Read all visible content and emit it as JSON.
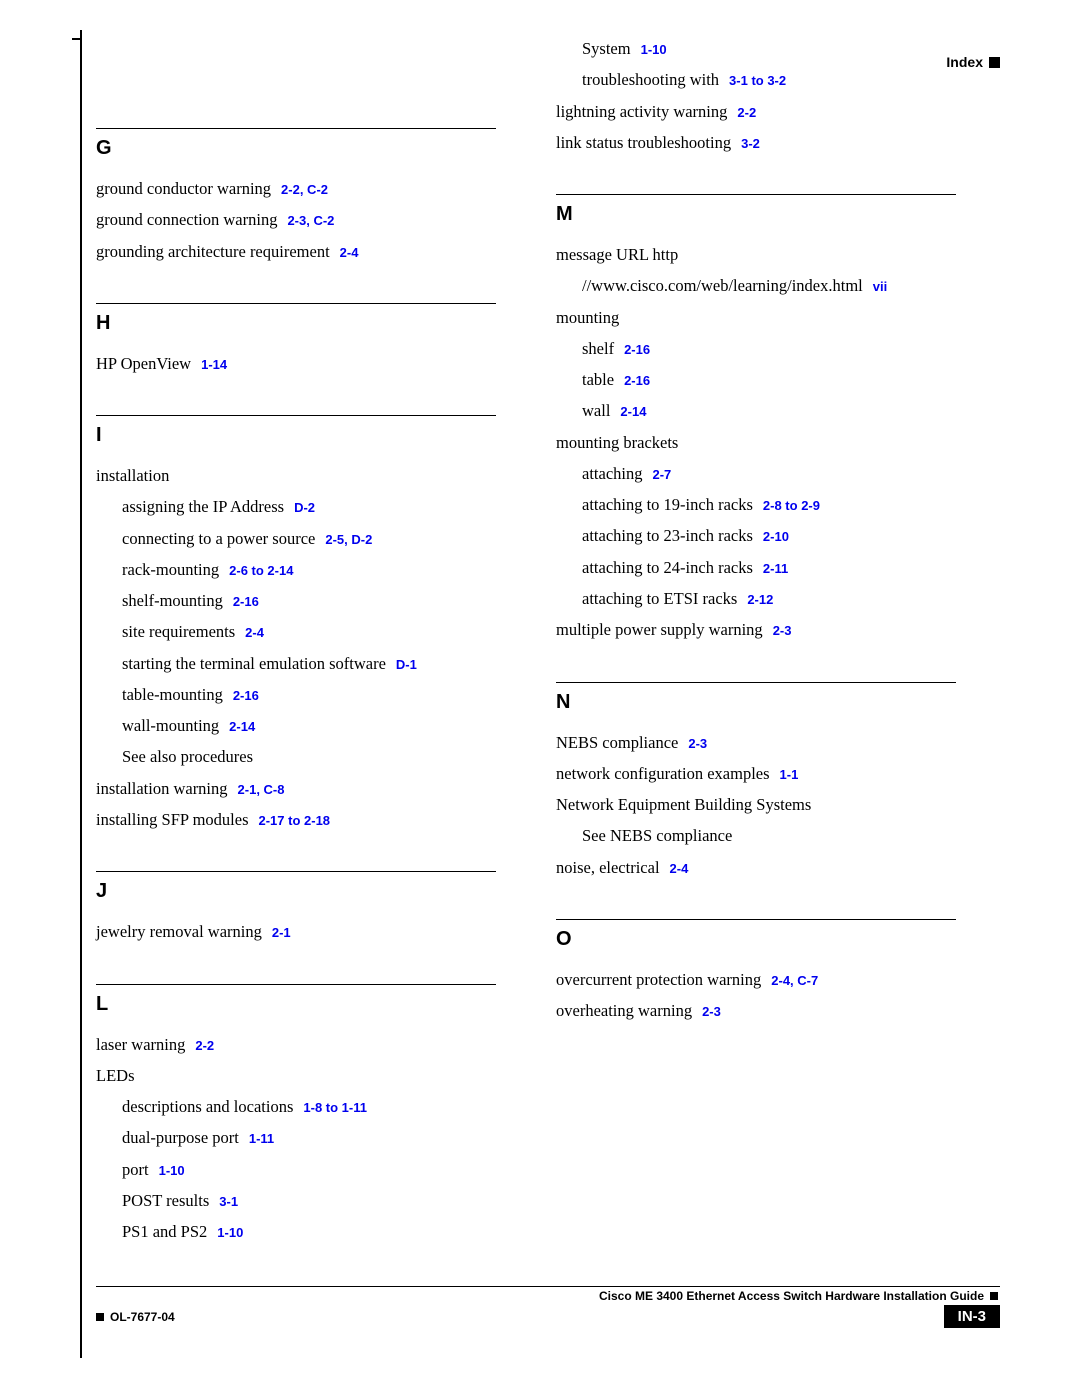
{
  "header": {
    "label": "Index"
  },
  "footer": {
    "guide": "Cisco ME 3400 Ethernet Access Switch Hardware Installation Guide",
    "code": "OL-7677-04",
    "pagenum": "IN-3"
  },
  "left": [
    {
      "letter": "G",
      "items": [
        {
          "text": "ground conductor warning",
          "ref": "2-2, C-2",
          "lvl": 0
        },
        {
          "text": "ground connection warning",
          "ref": "2-3, C-2",
          "lvl": 0
        },
        {
          "text": "grounding architecture requirement",
          "ref": "2-4",
          "lvl": 0
        }
      ]
    },
    {
      "letter": "H",
      "items": [
        {
          "text": "HP OpenView",
          "ref": "1-14",
          "lvl": 0
        }
      ]
    },
    {
      "letter": "I",
      "items": [
        {
          "text": "installation",
          "ref": "",
          "lvl": 0
        },
        {
          "text": "assigning the IP Address",
          "ref": "D-2",
          "lvl": 1
        },
        {
          "text": "connecting to a power source",
          "ref": "2-5, D-2",
          "lvl": 1
        },
        {
          "text": "rack-mounting",
          "ref": "2-6 to 2-14",
          "lvl": 1
        },
        {
          "text": "shelf-mounting",
          "ref": "2-16",
          "lvl": 1
        },
        {
          "text": "site requirements",
          "ref": "2-4",
          "lvl": 1
        },
        {
          "text": "starting the terminal emulation software",
          "ref": "D-1",
          "lvl": 1
        },
        {
          "text": "table-mounting",
          "ref": "2-16",
          "lvl": 1
        },
        {
          "text": "wall-mounting",
          "ref": "2-14",
          "lvl": 1
        },
        {
          "text": "See also procedures",
          "ref": "",
          "lvl": 1
        },
        {
          "text": "installation warning",
          "ref": "2-1, C-8",
          "lvl": 0
        },
        {
          "text": "installing SFP modules",
          "ref": "2-17 to 2-18",
          "lvl": 0
        }
      ]
    },
    {
      "letter": "J",
      "items": [
        {
          "text": "jewelry removal warning",
          "ref": "2-1",
          "lvl": 0
        }
      ]
    },
    {
      "letter": "L",
      "items": [
        {
          "text": "laser warning",
          "ref": "2-2",
          "lvl": 0
        },
        {
          "text": "LEDs",
          "ref": "",
          "lvl": 0
        },
        {
          "text": "descriptions and locations",
          "ref": "1-8 to 1-11",
          "lvl": 1
        },
        {
          "text": "dual-purpose port",
          "ref": "1-11",
          "lvl": 1
        },
        {
          "text": "port",
          "ref": "1-10",
          "lvl": 1
        },
        {
          "text": "POST results",
          "ref": "3-1",
          "lvl": 1
        },
        {
          "text": "PS1 and PS2",
          "ref": "1-10",
          "lvl": 1
        }
      ]
    }
  ],
  "right_pre": [
    {
      "text": "System",
      "ref": "1-10",
      "lvl": 1
    },
    {
      "text": "troubleshooting with",
      "ref": "3-1 to 3-2",
      "lvl": 1
    },
    {
      "text": "lightning activity warning",
      "ref": "2-2",
      "lvl": 0
    },
    {
      "text": "link status troubleshooting",
      "ref": "3-2",
      "lvl": 0
    }
  ],
  "right": [
    {
      "letter": "M",
      "items": [
        {
          "text": "message URL http",
          "ref": "",
          "lvl": 0
        },
        {
          "text": "//www.cisco.com/web/learning/index.html",
          "ref": "vii",
          "lvl": 1
        },
        {
          "text": "mounting",
          "ref": "",
          "lvl": 0
        },
        {
          "text": "shelf",
          "ref": "2-16",
          "lvl": 1
        },
        {
          "text": "table",
          "ref": "2-16",
          "lvl": 1
        },
        {
          "text": "wall",
          "ref": "2-14",
          "lvl": 1
        },
        {
          "text": "mounting brackets",
          "ref": "",
          "lvl": 0
        },
        {
          "text": "attaching",
          "ref": "2-7",
          "lvl": 1
        },
        {
          "text": "attaching to 19-inch racks",
          "ref": "2-8 to 2-9",
          "lvl": 1
        },
        {
          "text": "attaching to 23-inch racks",
          "ref": "2-10",
          "lvl": 1
        },
        {
          "text": "attaching to 24-inch racks",
          "ref": "2-11",
          "lvl": 1
        },
        {
          "text": "attaching to ETSI racks",
          "ref": "2-12",
          "lvl": 1
        },
        {
          "text": "multiple power supply warning",
          "ref": "2-3",
          "lvl": 0
        }
      ]
    },
    {
      "letter": "N",
      "items": [
        {
          "text": "NEBS compliance",
          "ref": "2-3",
          "lvl": 0
        },
        {
          "text": "network configuration examples",
          "ref": "1-1",
          "lvl": 0
        },
        {
          "text": " Network Equipment Building Systems",
          "ref": "",
          "lvl": 0
        },
        {
          "text": "See NEBS compliance",
          "ref": "",
          "lvl": 1
        },
        {
          "text": "noise, electrical",
          "ref": "2-4",
          "lvl": 0
        }
      ]
    },
    {
      "letter": "O",
      "items": [
        {
          "text": "overcurrent protection warning",
          "ref": "2-4, C-7",
          "lvl": 0
        },
        {
          "text": "overheating warning",
          "ref": "2-3",
          "lvl": 0
        }
      ]
    }
  ]
}
